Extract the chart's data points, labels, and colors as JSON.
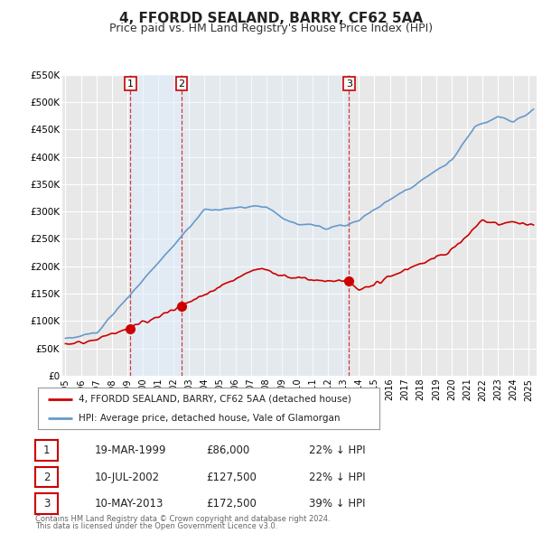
{
  "title": "4, FFORDD SEALAND, BARRY, CF62 5AA",
  "subtitle": "Price paid vs. HM Land Registry's House Price Index (HPI)",
  "title_fontsize": 11,
  "subtitle_fontsize": 9,
  "background_color": "#ffffff",
  "plot_bg_color": "#e8e8e8",
  "grid_color": "#ffffff",
  "ylim": [
    0,
    550000
  ],
  "yticks": [
    0,
    50000,
    100000,
    150000,
    200000,
    250000,
    300000,
    350000,
    400000,
    450000,
    500000,
    550000
  ],
  "ytick_labels": [
    "£0",
    "£50K",
    "£100K",
    "£150K",
    "£200K",
    "£250K",
    "£300K",
    "£350K",
    "£400K",
    "£450K",
    "£500K",
    "£550K"
  ],
  "xlim_start": 1994.8,
  "xlim_end": 2025.5,
  "xtick_years": [
    1995,
    1996,
    1997,
    1998,
    1999,
    2000,
    2001,
    2002,
    2003,
    2004,
    2005,
    2006,
    2007,
    2008,
    2009,
    2010,
    2011,
    2012,
    2013,
    2014,
    2015,
    2016,
    2017,
    2018,
    2019,
    2020,
    2021,
    2022,
    2023,
    2024,
    2025
  ],
  "sale_color": "#cc0000",
  "hpi_color": "#6699cc",
  "shade_color": "#ddeeff",
  "sale_linewidth": 1.2,
  "hpi_linewidth": 1.2,
  "transaction_dates_num": [
    1999.21,
    2002.52,
    2013.36
  ],
  "transaction_prices": [
    86000,
    127500,
    172500
  ],
  "transaction_labels": [
    "1",
    "2",
    "3"
  ],
  "transaction_dates_str": [
    "19-MAR-1999",
    "10-JUL-2002",
    "10-MAY-2013"
  ],
  "transaction_prices_str": [
    "£86,000",
    "£127,500",
    "£172,500"
  ],
  "transaction_discount": [
    "22% ↓ HPI",
    "22% ↓ HPI",
    "39% ↓ HPI"
  ],
  "legend_label_sale": "4, FFORDD SEALAND, BARRY, CF62 5AA (detached house)",
  "legend_label_hpi": "HPI: Average price, detached house, Vale of Glamorgan",
  "footer_line1": "Contains HM Land Registry data © Crown copyright and database right 2024.",
  "footer_line2": "This data is licensed under the Open Government Licence v3.0.",
  "marker_size": 7
}
